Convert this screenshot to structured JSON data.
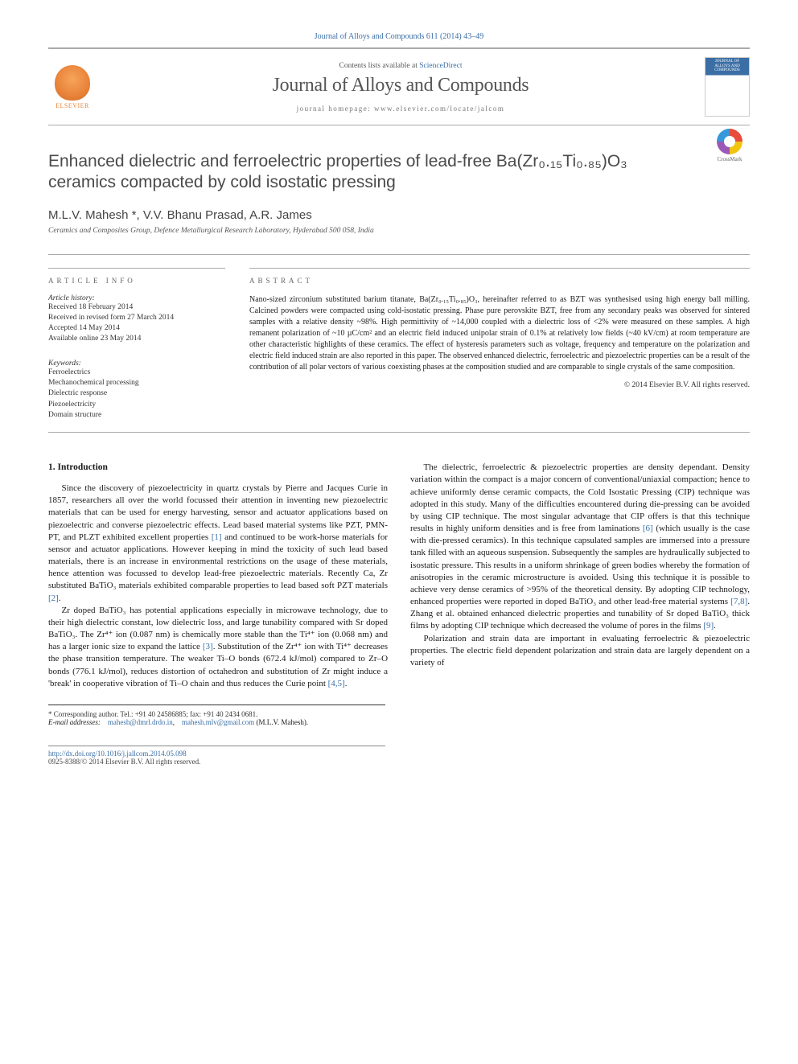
{
  "journal_ref": "Journal of Alloys and Compounds 611 (2014) 43–49",
  "header": {
    "contents_prefix": "Contents lists available at ",
    "contents_link": "ScienceDirect",
    "journal_name": "Journal of Alloys and Compounds",
    "homepage_prefix": "journal homepage: ",
    "homepage_url": "www.elsevier.com/locate/jalcom",
    "publisher": "ELSEVIER",
    "cover_title": "JOURNAL OF ALLOYS AND COMPOUNDS"
  },
  "crossmark_label": "CrossMark",
  "title": "Enhanced dielectric and ferroelectric properties of lead-free Ba(Zr₀.₁₅Ti₀.₈₅)O₃ ceramics compacted by cold isostatic pressing",
  "authors_line": "M.L.V. Mahesh *, V.V. Bhanu Prasad, A.R. James",
  "affiliation": "Ceramics and Composites Group, Defence Metallurgical Research Laboratory, Hyderabad 500 058, India",
  "article_info": {
    "heading": "ARTICLE INFO",
    "history_label": "Article history:",
    "received": "Received 18 February 2014",
    "revised": "Received in revised form 27 March 2014",
    "accepted": "Accepted 14 May 2014",
    "online": "Available online 23 May 2014",
    "keywords_label": "Keywords:",
    "keywords": [
      "Ferroelectrics",
      "Mechanochemical processing",
      "Dielectric response",
      "Piezoelectricity",
      "Domain structure"
    ]
  },
  "abstract": {
    "heading": "ABSTRACT",
    "text": "Nano-sized zirconium substituted barium titanate, Ba(Zr₀.₁₅Ti₀.₈₅)O₃, hereinafter referred to as BZT was synthesised using high energy ball milling. Calcined powders were compacted using cold-isostatic pressing. Phase pure perovskite BZT, free from any secondary peaks was observed for sintered samples with a relative density ~98%. High permittivity of ~14,000 coupled with a dielectric loss of <2% were measured on these samples. A high remanent polarization of ~10 µC/cm² and an electric field induced unipolar strain of 0.1% at relatively low fields (~40 kV/cm) at room temperature are other characteristic highlights of these ceramics. The effect of hysteresis parameters such as voltage, frequency and temperature on the polarization and electric field induced strain are also reported in this paper. The observed enhanced dielectric, ferroelectric and piezoelectric properties can be a result of the contribution of all polar vectors of various coexisting phases at the composition studied and are comparable to single crystals of the same composition.",
    "ref": "[4,5]",
    "copyright": "© 2014 Elsevier B.V. All rights reserved."
  },
  "body": {
    "section1_heading": "1. Introduction",
    "p1a": "Since the discovery of piezoelectricity in quartz crystals by Pierre and Jacques Curie in 1857, researchers all over the world focussed their attention in inventing new piezoelectric materials that can be used for energy harvesting, sensor and actuator applications based on piezoelectric and converse piezoelectric effects. Lead based material systems like PZT, PMN-PT, and PLZT exhibited excellent properties ",
    "p1_ref1": "[1]",
    "p1b": " and continued to be work-horse materials for sensor and actuator applications. However keeping in mind the toxicity of such lead based materials, there is an increase in environmental restrictions on the usage of these materials, hence attention was focussed to develop lead-free piezoelectric materials. Recently Ca, Zr substituted BaTiO₃ materials exhibited comparable properties to lead based soft PZT materials ",
    "p1_ref2": "[2]",
    "p1c": ".",
    "p2a": "Zr doped BaTiO₃ has potential applications especially in microwave technology, due to their high dielectric constant, low dielectric loss, and large tunability compared with Sr doped BaTiO₃. The Zr⁴⁺ ion (0.087 nm) is chemically more stable than the Ti⁴⁺ ion (0.068 nm) and has a larger ionic size to expand the lattice ",
    "p2_ref3": "[3]",
    "p2b": ". Substitution of the Zr⁴⁺ ion with Ti⁴⁺ decreases the phase transition temperature. The weaker Ti–O bonds (672.4 kJ/mol) ",
    "p2c": "compared to Zr–O bonds (776.1 kJ/mol), reduces distortion of octahedron and substitution of Zr might induce a 'break' in cooperative vibration of Ti–O chain and thus reduces the Curie point ",
    "p2_ref45": "[4,5]",
    "p2d": ".",
    "p3a": "The dielectric, ferroelectric & piezoelectric properties are density dependant. Density variation within the compact is a major concern of conventional/uniaxial compaction; hence to achieve uniformly dense ceramic compacts, the Cold Isostatic Pressing (CIP) technique was adopted in this study. Many of the difficulties encountered during die-pressing can be avoided by using CIP technique. The most singular advantage that CIP offers is that this technique results in highly uniform densities and is free from laminations ",
    "p3_ref6": "[6]",
    "p3b": " (which usually is the case with die-pressed ceramics). In this technique capsulated samples are immersed into a pressure tank filled with an aqueous suspension. Subsequently the samples are hydraulically subjected to isostatic pressure. This results in a uniform shrinkage of green bodies whereby the formation of anisotropies in the ceramic microstructure is avoided. Using this technique it is possible to achieve very dense ceramics of >95% of the theoretical density. By adopting CIP technology, enhanced properties were reported in doped BaTiO₃ and other lead-free material systems ",
    "p3_ref78": "[7,8]",
    "p3c": ". Zhang et al. obtained enhanced dielectric properties and tunability of Sr doped BaTiO₃ thick films by adopting CIP technique which decreased the volume of pores in the films ",
    "p3_ref9": "[9]",
    "p3d": ".",
    "p4": "Polarization and strain data are important in evaluating ferroelectric & piezoelectric properties. The electric field dependent polarization and strain data are largely dependent on a variety of"
  },
  "footer": {
    "corr_label": "* Corresponding author. Tel.: +91 40 24586885; fax: +91 40 2434 0681.",
    "email_label": "E-mail addresses:",
    "email1": "mahesh@dmrl.drdo.in",
    "email2": "mahesh.mlv@gmail.com",
    "email_owner": "(M.L.V. Mahesh).",
    "doi": "http://dx.doi.org/10.1016/j.jallcom.2014.05.098",
    "issn_line": "0925-8388/© 2014 Elsevier B.V. All rights reserved."
  },
  "colors": {
    "link": "#3a6ea5",
    "text": "#1a1a1a",
    "rule": "#aaaaaa",
    "elsevier_orange": "#e8833a"
  }
}
